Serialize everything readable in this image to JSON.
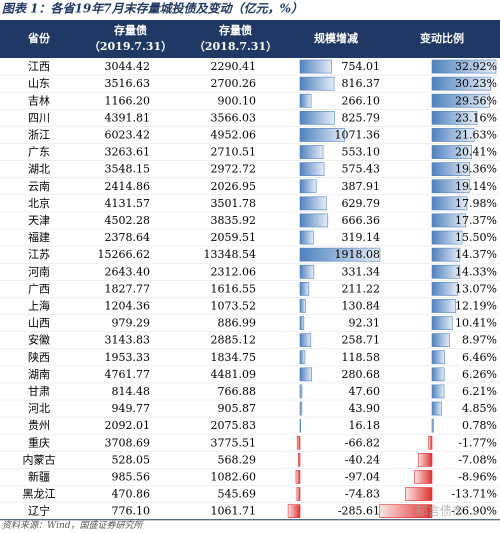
{
  "header": {
    "title": "图表 1：各省19年7月末存量城投债及变动（亿元，%）"
  },
  "table": {
    "columns": [
      [
        "省份"
      ],
      [
        "存量债",
        "（2019.7.31）"
      ],
      [
        "存量债",
        "（2018.7.31）"
      ],
      [
        "规模增减"
      ],
      [
        "变动比例"
      ]
    ],
    "rows": [
      [
        "江西",
        "3044.42",
        "2290.41",
        "754.01",
        "32.92%"
      ],
      [
        "山东",
        "3516.63",
        "2700.26",
        "816.37",
        "30.23%"
      ],
      [
        "吉林",
        "1166.20",
        "900.10",
        "266.10",
        "29.56%"
      ],
      [
        "四川",
        "4391.81",
        "3566.03",
        "825.79",
        "23.16%"
      ],
      [
        "浙江",
        "6023.42",
        "4952.06",
        "1071.36",
        "21.63%"
      ],
      [
        "广东",
        "3263.61",
        "2710.51",
        "553.10",
        "20.41%"
      ],
      [
        "湖北",
        "3548.15",
        "2972.72",
        "575.43",
        "19.36%"
      ],
      [
        "云南",
        "2414.86",
        "2026.95",
        "387.91",
        "19.14%"
      ],
      [
        "北京",
        "4131.57",
        "3501.78",
        "629.79",
        "17.98%"
      ],
      [
        "天津",
        "4502.28",
        "3835.92",
        "666.36",
        "17.37%"
      ],
      [
        "福建",
        "2378.64",
        "2059.51",
        "319.14",
        "15.50%"
      ],
      [
        "江苏",
        "15266.62",
        "13348.54",
        "1918.08",
        "14.37%"
      ],
      [
        "河南",
        "2643.40",
        "2312.06",
        "331.34",
        "14.33%"
      ],
      [
        "广西",
        "1827.77",
        "1616.55",
        "211.22",
        "13.07%"
      ],
      [
        "上海",
        "1204.36",
        "1073.52",
        "130.84",
        "12.19%"
      ],
      [
        "山西",
        "979.29",
        "886.99",
        "92.31",
        "10.41%"
      ],
      [
        "安徽",
        "3143.83",
        "2885.12",
        "258.71",
        "8.97%"
      ],
      [
        "陕西",
        "1953.33",
        "1834.75",
        "118.58",
        "6.46%"
      ],
      [
        "湖南",
        "4761.77",
        "4481.09",
        "280.68",
        "6.26%"
      ],
      [
        "甘肃",
        "814.48",
        "766.88",
        "47.60",
        "6.21%"
      ],
      [
        "河北",
        "949.77",
        "905.87",
        "43.90",
        "4.85%"
      ],
      [
        "贵州",
        "2092.01",
        "2075.83",
        "16.18",
        "0.78%"
      ],
      [
        "重庆",
        "3708.69",
        "3775.51",
        "-66.82",
        "-1.77%"
      ],
      [
        "内蒙古",
        "528.05",
        "568.29",
        "-40.24",
        "-7.08%"
      ],
      [
        "新疆",
        "985.56",
        "1082.60",
        "-97.04",
        "-8.96%"
      ],
      [
        "黑龙江",
        "470.86",
        "545.69",
        "-74.83",
        "-13.71%"
      ],
      [
        "辽宁",
        "776.10",
        "1061.71",
        "-285.61",
        "-26.90%"
      ]
    ]
  },
  "footer": {
    "source": "资料来源：Wind，国盛证券研究所",
    "watermark": "郁言债市"
  }
}
